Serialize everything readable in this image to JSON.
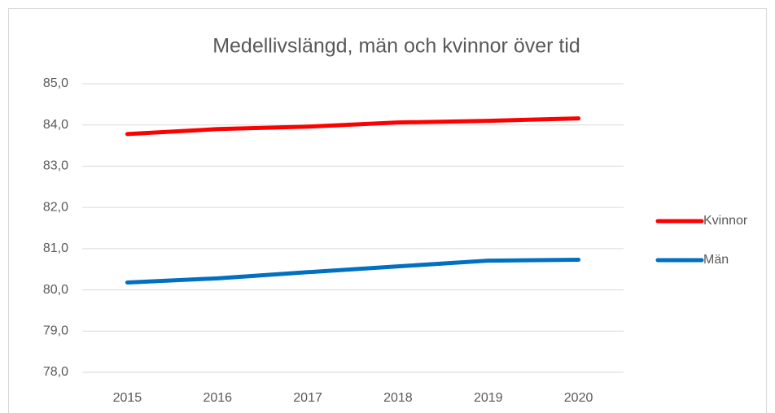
{
  "chart_data": {
    "type": "line",
    "title": "Medellivslängd, män och kvinnor över tid",
    "categories": [
      "2015",
      "2016",
      "2017",
      "2018",
      "2019",
      "2020"
    ],
    "series": [
      {
        "name": "Kvinnor",
        "color": "#ff0000",
        "values": [
          83.78,
          83.9,
          83.96,
          84.06,
          84.1,
          84.16
        ]
      },
      {
        "name": "Män",
        "color": "#0070c0",
        "values": [
          80.18,
          80.28,
          80.43,
          80.57,
          80.71,
          80.73
        ]
      }
    ],
    "ylim": [
      78,
      85
    ],
    "yticks": [
      {
        "value": 78,
        "label": "78,0"
      },
      {
        "value": 79,
        "label": "79,0"
      },
      {
        "value": 80,
        "label": "80,0"
      },
      {
        "value": 81,
        "label": "81,0"
      },
      {
        "value": 82,
        "label": "82,0"
      },
      {
        "value": 83,
        "label": "83,0"
      },
      {
        "value": 84,
        "label": "84,0"
      },
      {
        "value": 85,
        "label": "85,0"
      }
    ],
    "grid": true,
    "legend": "right"
  }
}
